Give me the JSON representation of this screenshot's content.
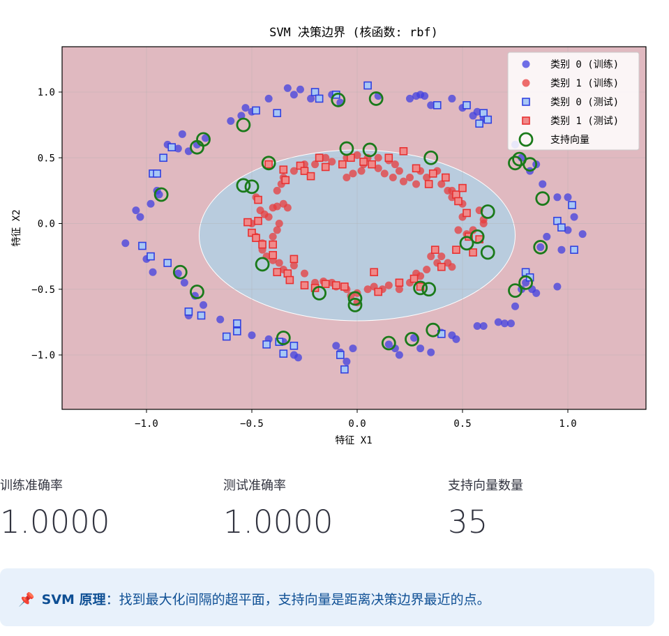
{
  "chart_data": {
    "type": "scatter",
    "title": "SVM 决策边界 (核函数: rbf)",
    "xlabel": "特征 X1",
    "ylabel": "特征 X2",
    "xlim": [
      -1.4,
      1.4
    ],
    "ylim": [
      -1.4,
      1.35
    ],
    "xticks": [
      -1.0,
      -0.5,
      0.0,
      0.5,
      1.0
    ],
    "xtick_labels": [
      "−1.0",
      "−0.5",
      "0.0",
      "0.5",
      "1.0"
    ],
    "yticks": [
      -1.0,
      -0.5,
      0.0,
      0.5,
      1.0
    ],
    "ytick_labels": [
      "−1.0",
      "−0.5",
      "0.0",
      "0.5",
      "1.0"
    ],
    "grid": true,
    "legend_position": "top-right",
    "decision_boundary": {
      "shape": "ellipse",
      "center": [
        0.0,
        -0.09
      ],
      "rx": 0.75,
      "ry": 0.65
    },
    "region_colors": {
      "outer": "#e0b9c0",
      "inner": "#b9ccde"
    },
    "series": [
      {
        "name": "类别 0 (训练)",
        "marker": "circle",
        "color": "#4040e0",
        "points": [
          [
            -1.1,
            -0.15
          ],
          [
            -1.05,
            0.1
          ],
          [
            -1.03,
            0.05
          ],
          [
            -0.98,
            0.15
          ],
          [
            -0.95,
            0.25
          ],
          [
            -0.94,
            0.22
          ],
          [
            -0.97,
            -0.37
          ],
          [
            -1.0,
            -0.27
          ],
          [
            -0.9,
            0.6
          ],
          [
            -0.85,
            0.57
          ],
          [
            -0.83,
            0.68
          ],
          [
            -0.8,
            0.55
          ],
          [
            -0.76,
            0.6
          ],
          [
            -0.72,
            0.65
          ],
          [
            -0.82,
            -0.45
          ],
          [
            -0.85,
            -0.38
          ],
          [
            -0.77,
            -0.55
          ],
          [
            -0.73,
            -0.62
          ],
          [
            -0.8,
            -0.7
          ],
          [
            -0.65,
            -0.73
          ],
          [
            -0.6,
            0.78
          ],
          [
            -0.55,
            0.82
          ],
          [
            -0.53,
            0.88
          ],
          [
            -0.5,
            0.85
          ],
          [
            -0.42,
            0.95
          ],
          [
            -0.33,
            1.03
          ],
          [
            -0.3,
            0.98
          ],
          [
            -0.27,
            1.02
          ],
          [
            -0.22,
            0.95
          ],
          [
            -0.12,
            0.98
          ],
          [
            -0.08,
            0.92
          ],
          [
            -0.57,
            -0.8
          ],
          [
            -0.5,
            -0.85
          ],
          [
            -0.42,
            -0.88
          ],
          [
            -0.35,
            -0.9
          ],
          [
            -0.3,
            -1.0
          ],
          [
            -0.28,
            -1.02
          ],
          [
            -0.1,
            -0.93
          ],
          [
            -0.08,
            -0.98
          ],
          [
            -0.05,
            -1.05
          ],
          [
            -0.02,
            -0.95
          ],
          [
            0.05,
            1.05
          ],
          [
            0.1,
            0.97
          ],
          [
            0.25,
            0.95
          ],
          [
            0.28,
            0.97
          ],
          [
            0.3,
            0.98
          ],
          [
            0.32,
            0.97
          ],
          [
            0.35,
            0.9
          ],
          [
            0.45,
            0.95
          ],
          [
            0.5,
            0.88
          ],
          [
            0.55,
            0.82
          ],
          [
            0.57,
            0.85
          ],
          [
            0.6,
            0.8
          ],
          [
            0.27,
            -0.87
          ],
          [
            0.3,
            -0.95
          ],
          [
            0.35,
            -0.98
          ],
          [
            0.4,
            -0.83
          ],
          [
            0.45,
            -0.85
          ],
          [
            0.47,
            -0.88
          ],
          [
            0.15,
            -0.92
          ],
          [
            0.18,
            -0.95
          ],
          [
            0.2,
            -1.0
          ],
          [
            0.57,
            -0.78
          ],
          [
            0.6,
            -0.78
          ],
          [
            0.67,
            -0.75
          ],
          [
            0.7,
            -0.76
          ],
          [
            0.73,
            -0.76
          ],
          [
            0.75,
            -0.63
          ],
          [
            0.78,
            -0.5
          ],
          [
            0.8,
            -0.45
          ],
          [
            0.83,
            -0.5
          ],
          [
            0.85,
            -0.53
          ],
          [
            0.87,
            -0.18
          ],
          [
            0.9,
            -0.1
          ],
          [
            0.95,
            -0.48
          ],
          [
            0.97,
            -0.2
          ],
          [
            1.0,
            -0.05
          ],
          [
            1.03,
            0.05
          ],
          [
            1.07,
            -0.08
          ],
          [
            1.0,
            0.2
          ],
          [
            0.95,
            0.2
          ],
          [
            0.88,
            0.3
          ],
          [
            0.85,
            0.45
          ],
          [
            0.82,
            0.4
          ],
          [
            0.78,
            0.5
          ],
          [
            0.75,
            0.6
          ]
        ]
      },
      {
        "name": "类别 1 (训练)",
        "marker": "circle",
        "color": "#e83c3c",
        "points": [
          [
            -0.48,
            0.2
          ],
          [
            -0.46,
            0.1
          ],
          [
            -0.44,
            0.07
          ],
          [
            -0.42,
            0.05
          ],
          [
            -0.4,
            0.12
          ],
          [
            -0.38,
            0.13
          ],
          [
            -0.38,
            0.25
          ],
          [
            -0.36,
            0.3
          ],
          [
            -0.35,
            0.35
          ],
          [
            -0.38,
            -0.05
          ],
          [
            -0.4,
            -0.1
          ],
          [
            -0.45,
            -0.2
          ],
          [
            -0.43,
            -0.25
          ],
          [
            -0.4,
            -0.28
          ],
          [
            -0.37,
            -0.3
          ],
          [
            -0.35,
            -0.35
          ],
          [
            -0.3,
            -0.32
          ],
          [
            -0.25,
            -0.38
          ],
          [
            -0.2,
            -0.45
          ],
          [
            -0.16,
            -0.44
          ],
          [
            -0.12,
            -0.45
          ],
          [
            -0.1,
            -0.48
          ],
          [
            -0.05,
            -0.5
          ],
          [
            -0.03,
            -0.55
          ],
          [
            0.0,
            -0.6
          ],
          [
            0.05,
            -0.5
          ],
          [
            0.08,
            -0.48
          ],
          [
            0.12,
            -0.5
          ],
          [
            0.15,
            -0.47
          ],
          [
            0.2,
            -0.5
          ],
          [
            0.25,
            -0.45
          ],
          [
            0.28,
            -0.38
          ],
          [
            0.3,
            -0.4
          ],
          [
            0.33,
            -0.35
          ],
          [
            0.38,
            -0.3
          ],
          [
            0.4,
            -0.25
          ],
          [
            -0.3,
            0.4
          ],
          [
            -0.25,
            0.45
          ],
          [
            -0.2,
            0.45
          ],
          [
            -0.15,
            0.5
          ],
          [
            -0.12,
            0.47
          ],
          [
            -0.05,
            0.5
          ],
          [
            0.0,
            0.52
          ],
          [
            0.05,
            0.5
          ],
          [
            0.1,
            0.5
          ],
          [
            0.15,
            0.48
          ],
          [
            0.18,
            0.45
          ],
          [
            0.2,
            0.4
          ],
          [
            0.25,
            0.35
          ],
          [
            0.28,
            0.3
          ],
          [
            0.3,
            0.4
          ],
          [
            0.33,
            0.35
          ],
          [
            0.38,
            0.4
          ],
          [
            0.4,
            0.3
          ],
          [
            0.43,
            0.25
          ],
          [
            0.45,
            0.25
          ],
          [
            0.5,
            0.15
          ],
          [
            0.5,
            0.05
          ],
          [
            0.48,
            -0.05
          ],
          [
            0.52,
            -0.08
          ],
          [
            0.55,
            -0.05
          ],
          [
            0.6,
            0.0
          ],
          [
            0.45,
            0.2
          ],
          [
            0.58,
            0.1
          ],
          [
            0.6,
            0.03
          ],
          [
            -0.5,
            0.0
          ],
          [
            -0.48,
            -0.1
          ],
          [
            -0.45,
            -0.15
          ],
          [
            -0.05,
            0.35
          ],
          [
            0.02,
            0.4
          ],
          [
            0.1,
            0.42
          ],
          [
            -0.02,
            0.38
          ],
          [
            0.03,
            0.45
          ],
          [
            0.13,
            0.38
          ],
          [
            0.17,
            0.35
          ],
          [
            0.22,
            0.32
          ],
          [
            0.0,
            -0.53
          ],
          [
            0.35,
            -0.25
          ],
          [
            0.43,
            -0.3
          ],
          [
            0.45,
            -0.33
          ],
          [
            -0.35,
            0.15
          ],
          [
            -0.33,
            0.12
          ],
          [
            -0.37,
            0.0
          ]
        ]
      },
      {
        "name": "类别 0 (测试)",
        "marker": "square",
        "color": "#3040e0",
        "points": [
          [
            -1.02,
            -0.17
          ],
          [
            -0.98,
            -0.25
          ],
          [
            -0.97,
            0.38
          ],
          [
            -0.95,
            0.38
          ],
          [
            -0.92,
            0.5
          ],
          [
            -0.9,
            -0.3
          ],
          [
            -0.88,
            0.58
          ],
          [
            -0.8,
            -0.67
          ],
          [
            -0.74,
            -0.7
          ],
          [
            -0.62,
            -0.86
          ],
          [
            -0.57,
            -0.76
          ],
          [
            -0.57,
            -0.82
          ],
          [
            -0.43,
            -0.92
          ],
          [
            -0.37,
            -0.9
          ],
          [
            -0.35,
            -0.99
          ],
          [
            -0.3,
            -0.93
          ],
          [
            -0.48,
            0.86
          ],
          [
            -0.38,
            0.84
          ],
          [
            -0.2,
            1.0
          ],
          [
            -0.18,
            0.95
          ],
          [
            -0.1,
            0.98
          ],
          [
            0.05,
            1.05
          ],
          [
            0.38,
            0.9
          ],
          [
            0.52,
            0.9
          ],
          [
            0.6,
            0.84
          ],
          [
            0.58,
            0.76
          ],
          [
            0.62,
            0.79
          ],
          [
            -0.08,
            -1.0
          ],
          [
            -0.06,
            -1.11
          ],
          [
            0.4,
            -0.84
          ],
          [
            0.8,
            -0.37
          ],
          [
            0.82,
            -0.41
          ],
          [
            0.95,
            0.02
          ],
          [
            0.97,
            -0.03
          ],
          [
            1.03,
            -0.2
          ],
          [
            1.02,
            0.14
          ]
        ]
      },
      {
        "name": "类别 1 (测试)",
        "marker": "square",
        "color": "#e83030",
        "points": [
          [
            -0.42,
            0.45
          ],
          [
            -0.35,
            0.41
          ],
          [
            -0.34,
            0.33
          ],
          [
            -0.27,
            0.44
          ],
          [
            -0.25,
            0.4
          ],
          [
            -0.22,
            0.36
          ],
          [
            -0.18,
            0.5
          ],
          [
            -0.15,
            0.43
          ],
          [
            -0.07,
            0.45
          ],
          [
            -0.03,
            0.5
          ],
          [
            0.03,
            0.47
          ],
          [
            0.07,
            0.45
          ],
          [
            0.15,
            0.5
          ],
          [
            0.22,
            0.55
          ],
          [
            0.28,
            0.42
          ],
          [
            0.34,
            0.3
          ],
          [
            0.36,
            0.38
          ],
          [
            0.42,
            0.35
          ],
          [
            0.47,
            0.22
          ],
          [
            0.5,
            0.27
          ],
          [
            0.48,
            0.17
          ],
          [
            0.52,
            0.08
          ],
          [
            -0.47,
            0.18
          ],
          [
            -0.47,
            0.02
          ],
          [
            -0.52,
            0.01
          ],
          [
            -0.5,
            -0.07
          ],
          [
            -0.48,
            -0.11
          ],
          [
            -0.45,
            -0.16
          ],
          [
            -0.4,
            -0.16
          ],
          [
            -0.4,
            -0.24
          ],
          [
            -0.38,
            -0.37
          ],
          [
            -0.33,
            -0.38
          ],
          [
            -0.32,
            -0.43
          ],
          [
            -0.3,
            -0.27
          ],
          [
            -0.25,
            -0.47
          ],
          [
            -0.2,
            -0.49
          ],
          [
            -0.15,
            -0.46
          ],
          [
            -0.1,
            -0.47
          ],
          [
            -0.06,
            -0.48
          ],
          [
            0.1,
            -0.52
          ],
          [
            0.08,
            -0.37
          ],
          [
            0.2,
            -0.45
          ],
          [
            0.27,
            -0.42
          ],
          [
            0.3,
            -0.48
          ],
          [
            0.37,
            -0.2
          ],
          [
            0.4,
            -0.33
          ],
          [
            0.47,
            -0.2
          ],
          [
            0.53,
            -0.1
          ],
          [
            0.55,
            -0.22
          ],
          [
            0.58,
            -0.12
          ]
        ]
      },
      {
        "name": "支持向量",
        "marker": "ring",
        "color": "#1a7a1a",
        "points": [
          [
            -0.93,
            0.22
          ],
          [
            -0.76,
            0.58
          ],
          [
            -0.73,
            0.64
          ],
          [
            -0.54,
            0.75
          ],
          [
            -0.54,
            0.29
          ],
          [
            -0.5,
            0.28
          ],
          [
            -0.42,
            0.46
          ],
          [
            -0.84,
            -0.37
          ],
          [
            -0.76,
            -0.52
          ],
          [
            -0.35,
            -0.87
          ],
          [
            -0.45,
            -0.31
          ],
          [
            -0.18,
            -0.53
          ],
          [
            -0.09,
            0.94
          ],
          [
            -0.05,
            0.57
          ],
          [
            0.06,
            0.56
          ],
          [
            0.09,
            0.95
          ],
          [
            0.35,
            0.5
          ],
          [
            -0.01,
            -0.57
          ],
          [
            -0.01,
            -0.62
          ],
          [
            0.15,
            -0.91
          ],
          [
            0.26,
            -0.88
          ],
          [
            0.36,
            -0.81
          ],
          [
            0.3,
            -0.49
          ],
          [
            0.34,
            -0.5
          ],
          [
            0.52,
            -0.15
          ],
          [
            0.57,
            -0.1
          ],
          [
            0.62,
            0.09
          ],
          [
            0.62,
            -0.22
          ],
          [
            0.77,
            0.49
          ],
          [
            0.82,
            0.45
          ],
          [
            0.88,
            0.19
          ],
          [
            0.87,
            -0.18
          ],
          [
            0.8,
            -0.45
          ],
          [
            0.75,
            -0.51
          ],
          [
            0.75,
            0.46
          ]
        ]
      }
    ]
  },
  "metrics": [
    {
      "label": "训练准确率",
      "value": "1.0000"
    },
    {
      "label": "测试准确率",
      "value": "1.0000"
    },
    {
      "label": "支持向量数量",
      "value": "35"
    }
  ],
  "info": {
    "icon": "pushpin-icon",
    "bold": "SVM 原理",
    "text": "：找到最大化间隔的超平面，支持向量是距离决策边界最近的点。"
  }
}
